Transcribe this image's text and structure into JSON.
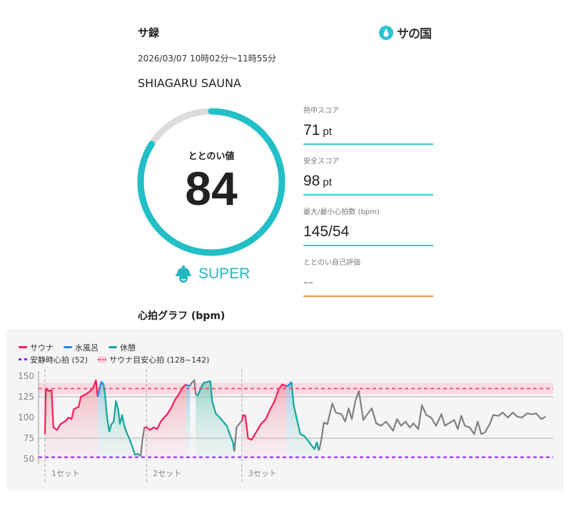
{
  "header": {
    "app_title": "サ録",
    "logo_text": "サの国",
    "logo_icon": "water-drop-icon"
  },
  "session": {
    "datetime": "2026/03/07 10時02分〜11時55分",
    "facility": "SHIAGARU SAUNA"
  },
  "totonoi": {
    "label": "ととのい値",
    "value": "84",
    "score": 84,
    "max": 100,
    "rank": "SUPER",
    "rank_icon": "sauna-hat-icon"
  },
  "metrics": [
    {
      "label": "熱中スコア",
      "value": "71",
      "unit": "pt"
    },
    {
      "label": "安全スコア",
      "value": "98",
      "unit": "pt"
    },
    {
      "label": "最大/最小心拍数 (bpm)",
      "value": "145/54",
      "unit": ""
    },
    {
      "label": "ととのい自己評価",
      "value": "--",
      "unit": ""
    }
  ],
  "colors": {
    "accent": "#22bfc6",
    "sauna": "#ff1a55",
    "cold_bath": "#1e88e5",
    "rest": "#13a59e",
    "other": "#808080",
    "resting_hr": "#9b1cf2",
    "target_band": "#f0416b",
    "self_eval_line": "#f5913e"
  },
  "chart_data": {
    "type": "line",
    "title": "心拍グラフ (bpm)",
    "legend": {
      "placement": "top-left",
      "sauna": "サウナ",
      "cold_bath": "水風呂",
      "rest": "休憩",
      "resting_hr": "安静時心拍 (52)",
      "target": "サウナ目安心拍 (128~142)"
    },
    "y_ticks": [
      "150",
      "125",
      "100",
      "75",
      "50"
    ],
    "ylim": [
      50,
      150
    ],
    "resting_hr": 52,
    "target_range": [
      128,
      142
    ],
    "sets": [
      {
        "label": "1セット",
        "t": 0
      },
      {
        "label": "2セット",
        "t": 22.9
      },
      {
        "label": "3セット",
        "t": 44.4
      }
    ],
    "x_unit": "minutes since 10:02",
    "xlim": [
      0,
      113
    ],
    "points": [
      [
        0.0,
        80,
        "sauna"
      ],
      [
        0.2,
        135,
        "sauna"
      ],
      [
        0.8,
        132,
        "sauna"
      ],
      [
        1.5,
        133,
        "sauna"
      ],
      [
        1.9,
        88,
        "sauna"
      ],
      [
        2.7,
        85,
        "sauna"
      ],
      [
        3.5,
        92,
        "sauna"
      ],
      [
        4.7,
        96,
        "sauna"
      ],
      [
        5.3,
        100,
        "sauna"
      ],
      [
        6.0,
        98,
        "sauna"
      ],
      [
        6.5,
        110,
        "sauna"
      ],
      [
        7.6,
        113,
        "sauna"
      ],
      [
        8.1,
        125,
        "sauna"
      ],
      [
        9.2,
        128,
        "sauna"
      ],
      [
        10.0,
        131,
        "sauna"
      ],
      [
        10.8,
        135,
        "sauna"
      ],
      [
        11.5,
        145,
        "sauna"
      ],
      [
        11.9,
        125,
        "sauna"
      ],
      [
        12.1,
        130,
        "cold"
      ],
      [
        12.7,
        143,
        "cold"
      ],
      [
        13.2,
        140,
        "cold"
      ],
      [
        13.5,
        130,
        "rest"
      ],
      [
        14.0,
        100,
        "rest"
      ],
      [
        14.5,
        83,
        "rest"
      ],
      [
        15.0,
        92,
        "rest"
      ],
      [
        15.5,
        95,
        "rest"
      ],
      [
        16.0,
        120,
        "rest"
      ],
      [
        16.5,
        110,
        "rest"
      ],
      [
        16.9,
        92,
        "rest"
      ],
      [
        17.4,
        103,
        "rest"
      ],
      [
        17.9,
        90,
        "rest"
      ],
      [
        18.4,
        82,
        "rest"
      ],
      [
        19.0,
        75,
        "rest"
      ],
      [
        19.7,
        65,
        "rest"
      ],
      [
        20.3,
        55,
        "rest"
      ],
      [
        21.0,
        56,
        "rest"
      ],
      [
        21.6,
        53,
        "rest"
      ],
      [
        21.9,
        70,
        "other"
      ],
      [
        22.4,
        88,
        "other"
      ],
      [
        22.9,
        88,
        "sauna"
      ],
      [
        23.7,
        85,
        "sauna"
      ],
      [
        24.5,
        88,
        "sauna"
      ],
      [
        25.3,
        86,
        "sauna"
      ],
      [
        26.1,
        95,
        "sauna"
      ],
      [
        26.9,
        100,
        "sauna"
      ],
      [
        27.7,
        105,
        "sauna"
      ],
      [
        28.5,
        112,
        "sauna"
      ],
      [
        29.4,
        122,
        "sauna"
      ],
      [
        30.2,
        128,
        "sauna"
      ],
      [
        31.0,
        136,
        "sauna"
      ],
      [
        31.8,
        140,
        "sauna"
      ],
      [
        32.1,
        139,
        "cold"
      ],
      [
        32.7,
        138,
        "cold"
      ],
      [
        33.1,
        142,
        "other"
      ],
      [
        33.7,
        145,
        "other"
      ],
      [
        34.0,
        128,
        "other"
      ],
      [
        34.5,
        127,
        "rest"
      ],
      [
        35.2,
        136,
        "rest"
      ],
      [
        35.8,
        142,
        "rest"
      ],
      [
        36.6,
        143,
        "rest"
      ],
      [
        37.3,
        144,
        "rest"
      ],
      [
        37.7,
        120,
        "rest"
      ],
      [
        38.5,
        105,
        "rest"
      ],
      [
        39.4,
        100,
        "rest"
      ],
      [
        40.2,
        95,
        "rest"
      ],
      [
        41.0,
        90,
        "rest"
      ],
      [
        41.8,
        78,
        "rest"
      ],
      [
        42.4,
        70,
        "rest"
      ],
      [
        42.7,
        59,
        "rest"
      ],
      [
        43.2,
        88,
        "other"
      ],
      [
        43.9,
        93,
        "other"
      ],
      [
        44.4,
        96,
        "other"
      ],
      [
        44.7,
        103,
        "sauna"
      ],
      [
        45.2,
        102,
        "sauna"
      ],
      [
        45.8,
        75,
        "sauna"
      ],
      [
        46.6,
        73,
        "sauna"
      ],
      [
        47.6,
        82,
        "sauna"
      ],
      [
        48.7,
        92,
        "sauna"
      ],
      [
        49.8,
        98,
        "sauna"
      ],
      [
        50.8,
        110,
        "sauna"
      ],
      [
        51.8,
        120,
        "sauna"
      ],
      [
        52.7,
        134,
        "sauna"
      ],
      [
        53.5,
        140,
        "sauna"
      ],
      [
        54.4,
        138,
        "sauna"
      ],
      [
        54.8,
        138,
        "cold"
      ],
      [
        55.6,
        143,
        "cold"
      ],
      [
        56.1,
        115,
        "rest"
      ],
      [
        56.8,
        98,
        "rest"
      ],
      [
        57.6,
        80,
        "rest"
      ],
      [
        58.4,
        78,
        "rest"
      ],
      [
        59.2,
        73,
        "rest"
      ],
      [
        60.0,
        67,
        "rest"
      ],
      [
        60.8,
        62,
        "rest"
      ],
      [
        61.3,
        70,
        "rest"
      ],
      [
        61.8,
        60,
        "rest"
      ],
      [
        62.3,
        72,
        "other"
      ],
      [
        62.9,
        94,
        "other"
      ],
      [
        63.7,
        92,
        "other"
      ],
      [
        64.8,
        117,
        "other"
      ],
      [
        65.6,
        106,
        "other"
      ],
      [
        66.9,
        104,
        "other"
      ],
      [
        67.7,
        95,
        "other"
      ],
      [
        68.5,
        111,
        "other"
      ],
      [
        69.2,
        98,
        "other"
      ],
      [
        70.0,
        120,
        "other"
      ],
      [
        70.8,
        132,
        "other"
      ],
      [
        71.8,
        97,
        "other"
      ],
      [
        72.7,
        104,
        "other"
      ],
      [
        73.7,
        111,
        "other"
      ],
      [
        74.7,
        93,
        "other"
      ],
      [
        75.8,
        90,
        "other"
      ],
      [
        76.9,
        95,
        "other"
      ],
      [
        77.7,
        90,
        "other"
      ],
      [
        78.5,
        84,
        "other"
      ],
      [
        79.4,
        98,
        "other"
      ],
      [
        80.3,
        90,
        "other"
      ],
      [
        81.3,
        95,
        "other"
      ],
      [
        82.3,
        88,
        "other"
      ],
      [
        83.1,
        93,
        "other"
      ],
      [
        84.2,
        86,
        "other"
      ],
      [
        85.0,
        115,
        "other"
      ],
      [
        86.0,
        103,
        "other"
      ],
      [
        87.1,
        100,
        "other"
      ],
      [
        88.2,
        90,
        "other"
      ],
      [
        89.4,
        104,
        "other"
      ],
      [
        90.2,
        90,
        "other"
      ],
      [
        91.1,
        93,
        "other"
      ],
      [
        92.3,
        97,
        "other"
      ],
      [
        93.1,
        86,
        "other"
      ],
      [
        93.9,
        102,
        "other"
      ],
      [
        94.7,
        90,
        "other"
      ],
      [
        95.8,
        88,
        "other"
      ],
      [
        96.8,
        80,
        "other"
      ],
      [
        97.6,
        95,
        "other"
      ],
      [
        98.4,
        80,
        "other"
      ],
      [
        99.2,
        82,
        "other"
      ],
      [
        100.3,
        92,
        "other"
      ],
      [
        101.1,
        103,
        "other"
      ],
      [
        102.3,
        102,
        "other"
      ],
      [
        103.2,
        106,
        "other"
      ],
      [
        104.4,
        100,
        "other"
      ],
      [
        105.5,
        106,
        "other"
      ],
      [
        106.5,
        101,
        "other"
      ],
      [
        107.6,
        100,
        "other"
      ],
      [
        108.7,
        105,
        "other"
      ],
      [
        109.8,
        104,
        "other"
      ],
      [
        110.8,
        105,
        "other"
      ],
      [
        111.9,
        98,
        "other"
      ],
      [
        112.9,
        101,
        "other"
      ]
    ]
  }
}
